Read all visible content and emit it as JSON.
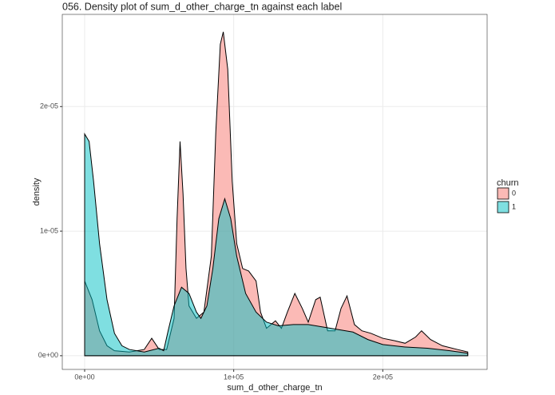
{
  "chart_data": {
    "type": "area",
    "title": "056. Density plot of sum_d_other_charge_tn against each label",
    "x_label": "sum_d_other_charge_tn",
    "y_label": "density",
    "legend_title": "churn",
    "legend_position": "right",
    "grid": true,
    "xlim": [
      -15000,
      270000
    ],
    "ylim": [
      -1.1e-06,
      2.74e-05
    ],
    "xticks": [
      {
        "value": 0,
        "label": "0e+00"
      },
      {
        "value": 100000,
        "label": "1e+05"
      },
      {
        "value": 200000,
        "label": "2e+05"
      }
    ],
    "yticks": [
      {
        "value": 0,
        "label": "0e+00"
      },
      {
        "value": 1e-05,
        "label": "1e-05"
      },
      {
        "value": 2e-05,
        "label": "2e-05"
      }
    ],
    "series": [
      {
        "name": "0",
        "color": "#F8766D",
        "x": [
          0,
          5000,
          10000,
          15000,
          20000,
          30000,
          40000,
          45000,
          50000,
          55000,
          60000,
          62000,
          64000,
          66000,
          68000,
          70000,
          75000,
          80000,
          85000,
          88000,
          91000,
          93000,
          96000,
          99000,
          102000,
          106000,
          110000,
          115000,
          118000,
          122000,
          128000,
          132000,
          136000,
          141000,
          146000,
          150000,
          155000,
          158000,
          163000,
          168000,
          172000,
          176000,
          181000,
          186000,
          192000,
          200000,
          208000,
          215000,
          222000,
          226000,
          232000,
          240000,
          250000,
          257000
        ],
        "values": [
          6e-06,
          4.5e-06,
          2e-06,
          8e-07,
          4e-07,
          3e-07,
          5e-07,
          1.4e-06,
          5e-07,
          5e-07,
          3e-06,
          1.1e-05,
          1.72e-05,
          1.3e-05,
          7e-06,
          4e-06,
          3e-06,
          3.5e-06,
          8e-06,
          1.8e-05,
          2.5e-05,
          2.6e-05,
          2.3e-05,
          1.4e-05,
          9e-06,
          7e-06,
          6.8e-06,
          6e-06,
          3.5e-06,
          2.2e-06,
          2.8e-06,
          2.2e-06,
          3.5e-06,
          5e-06,
          3.8e-06,
          2.7e-06,
          4.5e-06,
          4.7e-06,
          2e-06,
          2e-06,
          3.8e-06,
          4.8e-06,
          2.5e-06,
          2e-06,
          1.8e-06,
          1.4e-06,
          1.2e-06,
          1e-06,
          1.5e-06,
          2e-06,
          1.3e-06,
          8e-07,
          5e-07,
          3e-07
        ]
      },
      {
        "name": "1",
        "color": "#00BFC4",
        "x": [
          0,
          3000,
          6000,
          10000,
          15000,
          20000,
          25000,
          30000,
          40000,
          50000,
          53000,
          56000,
          60000,
          65000,
          70000,
          75000,
          78000,
          82000,
          86000,
          90000,
          94000,
          98000,
          102000,
          108000,
          115000,
          122000,
          130000,
          140000,
          150000,
          160000,
          170000,
          180000,
          190000,
          200000,
          215000,
          230000,
          245000,
          257000
        ],
        "values": [
          1.78e-05,
          1.72e-05,
          1.4e-05,
          9e-06,
          4.5e-06,
          1.8e-06,
          8e-07,
          5e-07,
          3e-07,
          6e-07,
          4e-07,
          2e-06,
          4e-06,
          5.5e-06,
          5e-06,
          3.5e-06,
          3e-06,
          4e-06,
          7e-06,
          1.1e-05,
          1.26e-05,
          1.1e-05,
          8e-06,
          5e-06,
          3.5e-06,
          2.7e-06,
          2.4e-06,
          2.5e-06,
          2.5e-06,
          2.3e-06,
          2.1e-06,
          1.9e-06,
          1.3e-06,
          9e-07,
          7e-07,
          6e-07,
          4e-07,
          2e-07
        ]
      }
    ]
  }
}
